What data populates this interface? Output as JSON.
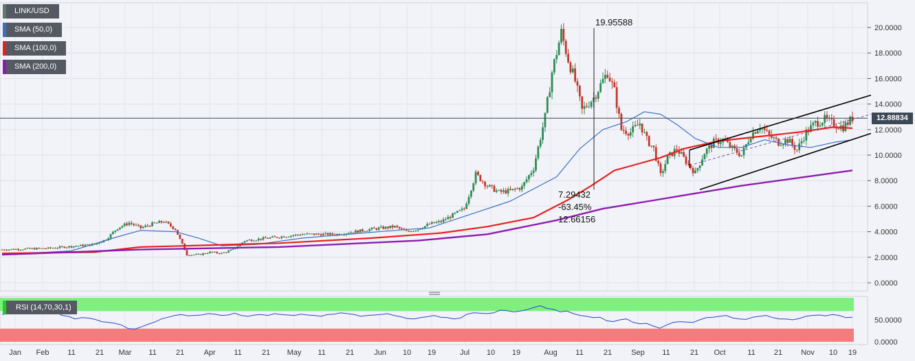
{
  "chart_data": {
    "type": "candlestick",
    "pair": "LINK/USD",
    "x_tick_labels": [
      "Jan",
      "Feb",
      "11",
      "21",
      "Mar",
      "11",
      "21",
      "Apr",
      "11",
      "21",
      "May",
      "11",
      "21",
      "Jun",
      "10",
      "19",
      "Jul",
      "10",
      "19",
      "Aug",
      "11",
      "21",
      "Sep",
      "11",
      "21",
      "Oct",
      "11",
      "21",
      "Nov",
      "10",
      "19"
    ],
    "y_tick_labels": [
      "0.0000",
      "2.0000",
      "4.0000",
      "6.0000",
      "8.0000",
      "10.0000",
      "12.0000",
      "14.0000",
      "16.0000",
      "18.0000",
      "20.0000"
    ],
    "ylim": [
      0,
      20
    ],
    "rsi_tick_labels": [
      "0.0000",
      "50.0000"
    ],
    "current_price": "12.88834",
    "legend": {
      "main": "LINK/USD",
      "sma50": "SMA (50,0)",
      "sma100": "SMA (100,0)",
      "sma200": "SMA (200,0)",
      "rsi": "RSI (14,70,30,1)"
    },
    "annotations": {
      "high": "19.95588",
      "low": "7.29432",
      "pct": "-63.45%",
      "diff": "12.66156"
    },
    "candle_color_up": "#2e8b57",
    "candle_color_down": "#c0392b",
    "colors": {
      "sma50": "#3a6fc4",
      "sma100": "#e8201e",
      "sma200": "#8e1bb0",
      "rsi_line": "#2646c8",
      "rsi_overbought": "#7df07d",
      "rsi_oversold": "#f47c7c",
      "channel": "#000000"
    },
    "price_path": [
      [
        0,
        2.6
      ],
      [
        20,
        2.7
      ],
      [
        40,
        3.0
      ],
      [
        45,
        3.4
      ],
      [
        50,
        4.3
      ],
      [
        55,
        4.7
      ],
      [
        60,
        4.3
      ],
      [
        65,
        4.6
      ],
      [
        70,
        4.8
      ],
      [
        75,
        4.2
      ],
      [
        80,
        2.2
      ],
      [
        85,
        2.2
      ],
      [
        90,
        2.4
      ],
      [
        95,
        2.3
      ],
      [
        100,
        2.6
      ],
      [
        105,
        3.3
      ],
      [
        115,
        3.5
      ],
      [
        130,
        3.8
      ],
      [
        145,
        3.8
      ],
      [
        160,
        4.2
      ],
      [
        170,
        4.4
      ],
      [
        175,
        4.0
      ],
      [
        180,
        4.2
      ],
      [
        185,
        4.6
      ],
      [
        190,
        4.8
      ],
      [
        200,
        5.8
      ],
      [
        205,
        8.5
      ],
      [
        210,
        7.6
      ],
      [
        215,
        7.1
      ],
      [
        220,
        7.2
      ],
      [
        225,
        7.5
      ],
      [
        230,
        9.0
      ],
      [
        235,
        13.0
      ],
      [
        238,
        16.5
      ],
      [
        242,
        19.6
      ],
      [
        245,
        17.5
      ],
      [
        248,
        15.8
      ],
      [
        251,
        13.5
      ],
      [
        256,
        14.5
      ],
      [
        262,
        16.5
      ],
      [
        265,
        15.0
      ],
      [
        268,
        12.0
      ],
      [
        272,
        11.8
      ],
      [
        276,
        12.5
      ],
      [
        279,
        11.2
      ],
      [
        282,
        10.5
      ],
      [
        285,
        8.4
      ],
      [
        288,
        9.8
      ],
      [
        292,
        10.5
      ],
      [
        296,
        9.5
      ],
      [
        300,
        8.6
      ],
      [
        304,
        10.2
      ],
      [
        308,
        11.0
      ],
      [
        312,
        11.2
      ],
      [
        316,
        10.5
      ],
      [
        320,
        10.0
      ],
      [
        324,
        11.6
      ],
      [
        328,
        12.3
      ],
      [
        332,
        11.5
      ],
      [
        336,
        11.0
      ],
      [
        340,
        11.2
      ],
      [
        344,
        10.4
      ],
      [
        348,
        11.8
      ],
      [
        352,
        12.5
      ],
      [
        356,
        12.8
      ],
      [
        360,
        12.4
      ],
      [
        364,
        12.2
      ],
      [
        368,
        12.89
      ]
    ],
    "sma50_path": [
      [
        0,
        2.2
      ],
      [
        30,
        2.5
      ],
      [
        50,
        3.6
      ],
      [
        60,
        4.1
      ],
      [
        75,
        4.0
      ],
      [
        85,
        3.5
      ],
      [
        95,
        2.9
      ],
      [
        110,
        3.0
      ],
      [
        130,
        3.5
      ],
      [
        150,
        3.8
      ],
      [
        170,
        4.1
      ],
      [
        185,
        4.3
      ],
      [
        200,
        5.2
      ],
      [
        220,
        6.4
      ],
      [
        240,
        8.3
      ],
      [
        250,
        10.5
      ],
      [
        260,
        12.0
      ],
      [
        270,
        12.6
      ],
      [
        278,
        13.4
      ],
      [
        285,
        13.2
      ],
      [
        292,
        12.4
      ],
      [
        300,
        11.3
      ],
      [
        310,
        10.6
      ],
      [
        320,
        10.6
      ],
      [
        330,
        11.2
      ],
      [
        340,
        10.8
      ],
      [
        350,
        10.6
      ],
      [
        360,
        11.0
      ],
      [
        368,
        11.2
      ]
    ],
    "sma100_path": [
      [
        0,
        2.3
      ],
      [
        40,
        2.4
      ],
      [
        60,
        2.8
      ],
      [
        80,
        2.9
      ],
      [
        120,
        3.1
      ],
      [
        160,
        3.5
      ],
      [
        190,
        3.9
      ],
      [
        210,
        4.4
      ],
      [
        230,
        5.1
      ],
      [
        245,
        6.5
      ],
      [
        255,
        7.6
      ],
      [
        265,
        8.8
      ],
      [
        275,
        9.3
      ],
      [
        285,
        9.8
      ],
      [
        295,
        10.5
      ],
      [
        310,
        11.1
      ],
      [
        330,
        11.5
      ],
      [
        345,
        11.8
      ],
      [
        360,
        12.2
      ],
      [
        368,
        12.1
      ]
    ],
    "sma200_path": [
      [
        0,
        2.2
      ],
      [
        60,
        2.6
      ],
      [
        120,
        2.8
      ],
      [
        180,
        3.3
      ],
      [
        210,
        3.8
      ],
      [
        240,
        4.9
      ],
      [
        260,
        5.8
      ],
      [
        280,
        6.4
      ],
      [
        300,
        7.0
      ],
      [
        320,
        7.6
      ],
      [
        340,
        8.1
      ],
      [
        368,
        8.8
      ]
    ],
    "rsi_values": [
      62,
      64,
      70,
      71,
      68,
      69,
      66,
      70,
      69,
      60,
      58,
      52,
      55,
      54,
      51,
      46,
      44,
      42,
      38,
      30,
      29,
      34,
      40,
      45,
      52,
      56,
      60,
      62,
      59,
      60,
      61,
      64,
      63,
      60,
      61,
      65,
      60,
      58,
      61,
      62,
      60,
      64,
      62,
      61,
      60,
      63,
      61,
      60,
      58,
      62,
      63,
      66,
      64,
      62,
      58,
      60,
      61,
      62,
      64,
      60,
      57,
      53,
      52,
      55,
      57,
      60,
      56,
      55,
      52,
      54,
      63,
      66,
      65,
      64,
      66,
      72,
      71,
      68,
      70,
      73,
      78,
      82,
      76,
      74,
      68,
      70,
      64,
      60,
      58,
      55,
      56,
      48,
      46,
      50,
      52,
      44,
      41,
      42,
      36,
      31,
      38,
      44,
      46,
      45,
      44,
      50,
      55,
      56,
      58,
      60,
      54,
      52,
      51,
      56,
      58,
      60,
      55,
      52,
      52,
      50,
      53,
      58,
      60,
      61,
      59,
      62,
      60,
      55,
      56
    ]
  }
}
